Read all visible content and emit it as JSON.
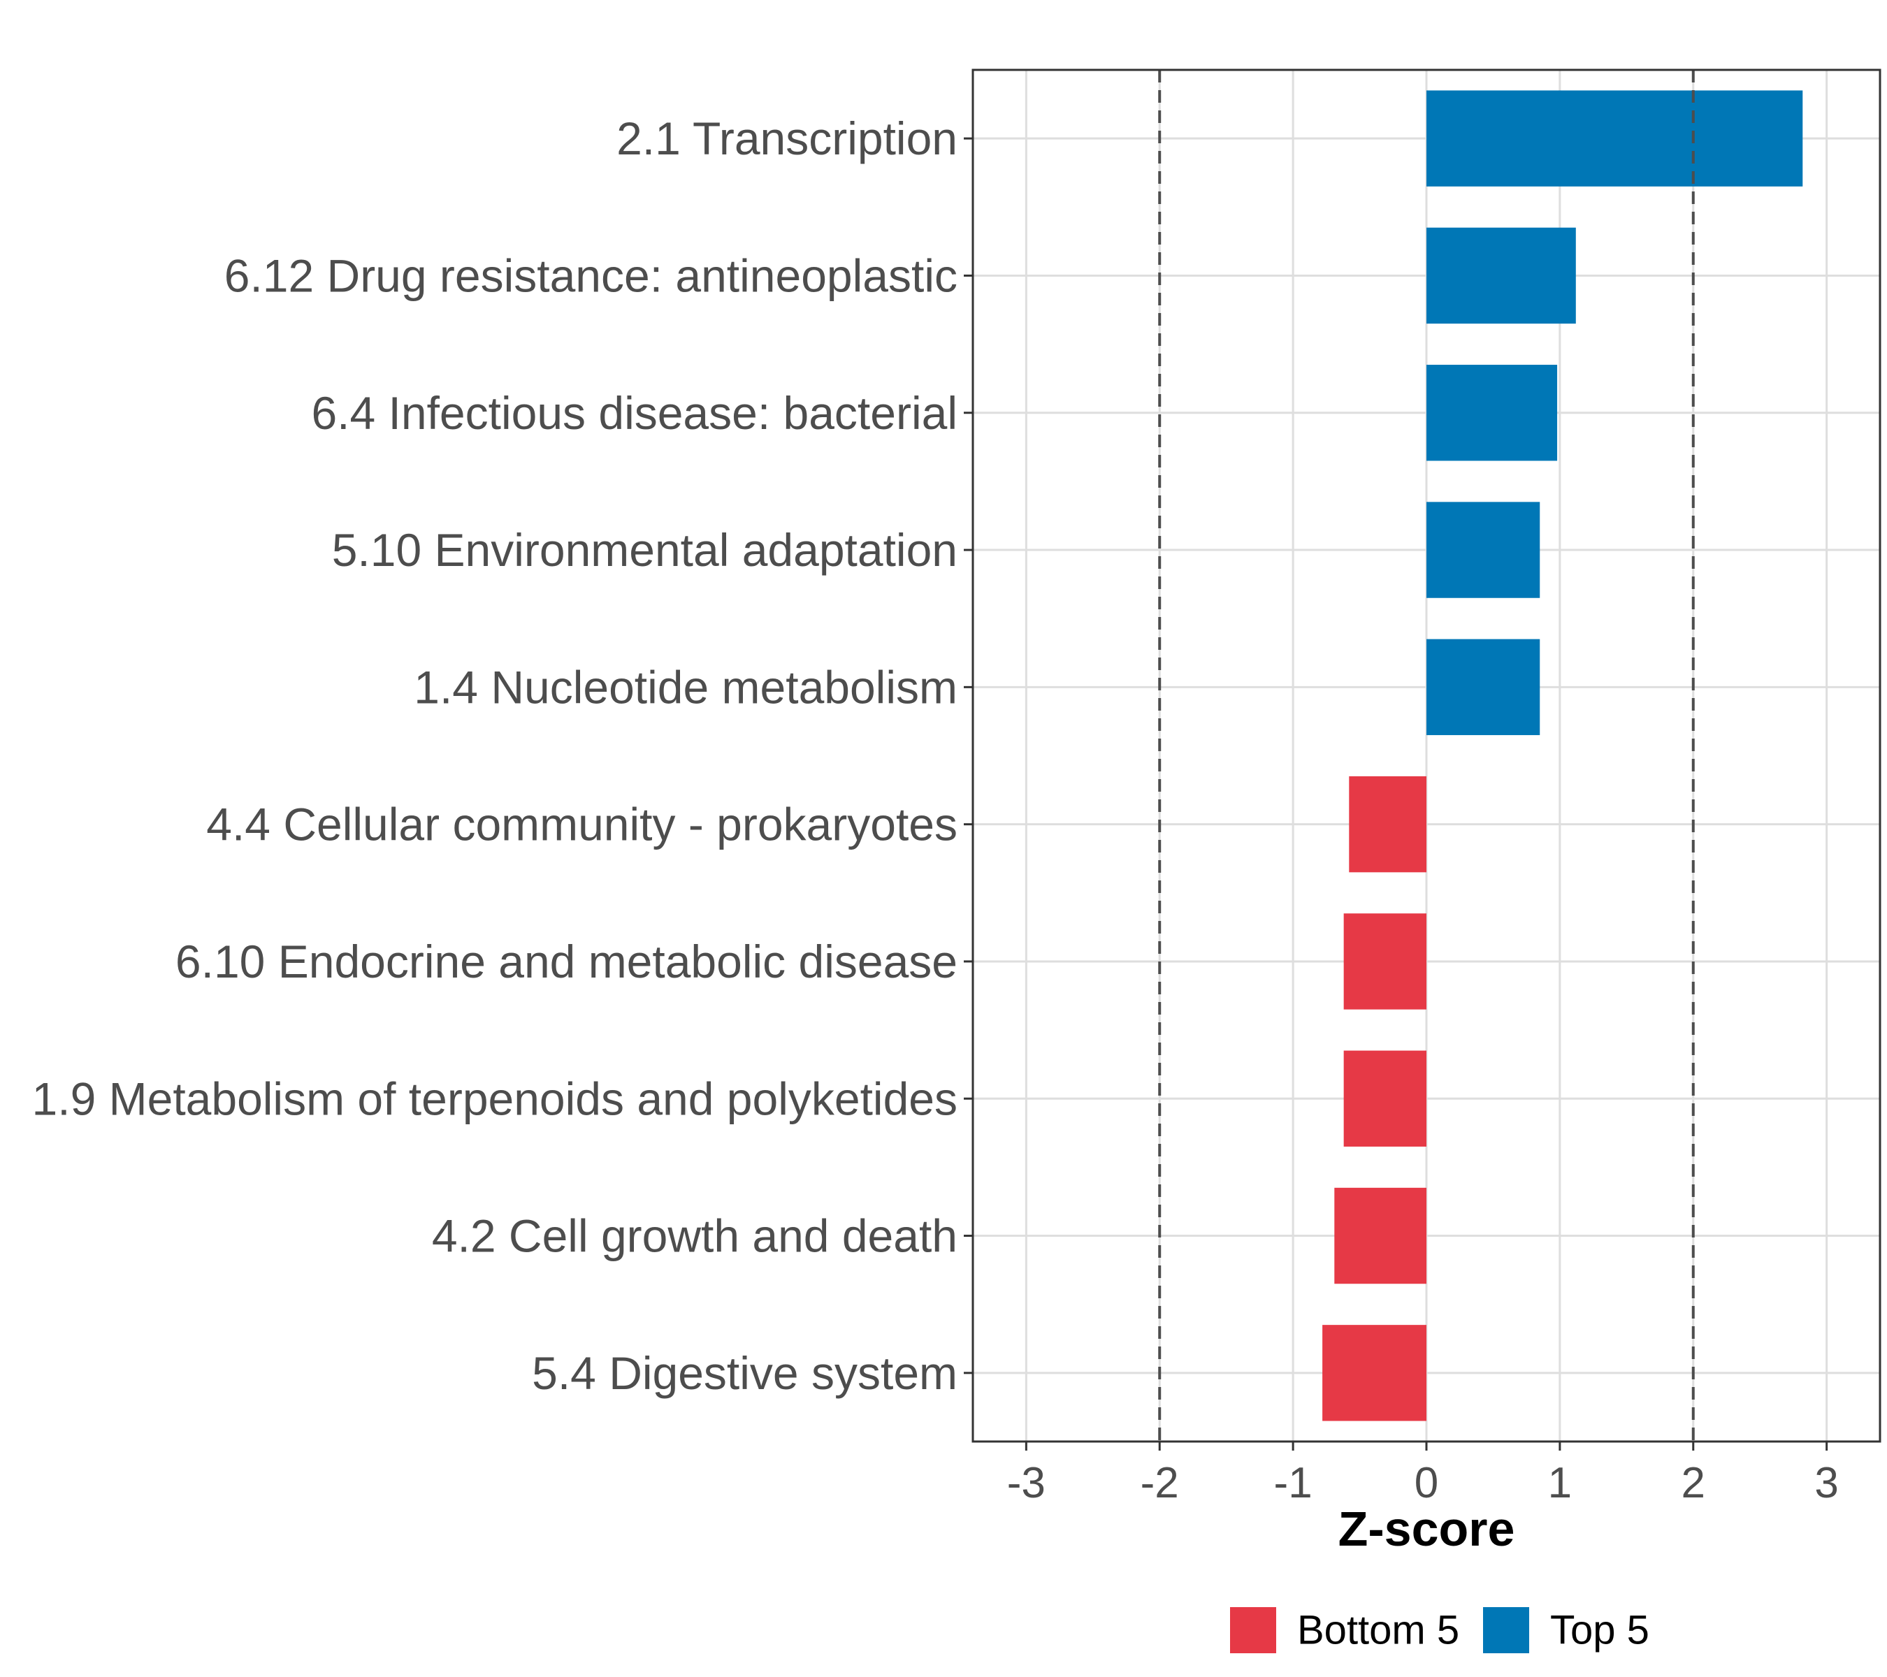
{
  "chart_data": {
    "type": "bar",
    "orientation": "horizontal",
    "categories": [
      "2.1 Transcription",
      "6.12 Drug resistance: antineoplastic",
      "6.4 Infectious disease: bacterial",
      "5.10 Environmental adaptation",
      "1.4 Nucleotide metabolism",
      "4.4 Cellular community - prokaryotes",
      "6.10 Endocrine and metabolic disease",
      "1.9 Metabolism of terpenoids and polyketides",
      "4.2 Cell growth and death",
      "5.4 Digestive system"
    ],
    "values": [
      2.82,
      1.12,
      0.98,
      0.85,
      0.85,
      -0.58,
      -0.62,
      -0.62,
      -0.69,
      -0.78
    ],
    "groups": [
      "Top 5",
      "Top 5",
      "Top 5",
      "Top 5",
      "Top 5",
      "Bottom 5",
      "Bottom 5",
      "Bottom 5",
      "Bottom 5",
      "Bottom 5"
    ],
    "xlabel": "Z-score",
    "ylabel": "",
    "xlim": [
      -3.4,
      3.4
    ],
    "xticks": [
      -3,
      -2,
      -1,
      0,
      1,
      2,
      3
    ],
    "xtick_labels": [
      "-3",
      "-2",
      "-1",
      "0",
      "1",
      "2",
      "3"
    ],
    "reference_lines": [
      -2,
      2
    ],
    "grid": true,
    "legend": {
      "position": "bottom",
      "items": [
        {
          "label": "Bottom 5",
          "color": "#e63946"
        },
        {
          "label": "Top 5",
          "color": "#0077b6"
        }
      ]
    },
    "colors": {
      "Top 5": "#0077b6",
      "Bottom 5": "#e63946"
    }
  }
}
